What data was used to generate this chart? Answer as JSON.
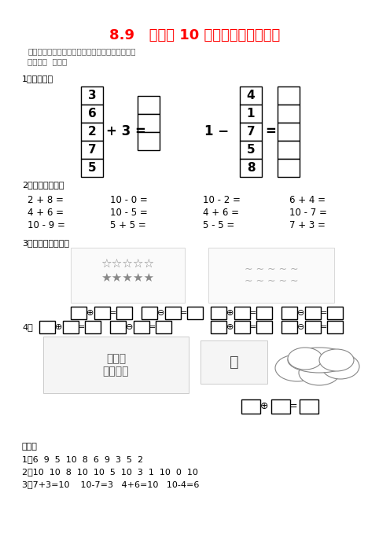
{
  "title": "8.9   得数是 10 的加法和相应的减法",
  "title_color": "#FF0000",
  "subtitle1": "路漫漫其修远兮，吾将上下而求索。屈原《离骚》",
  "subtitle2": "江南学校  李友峰",
  "section1": "1、填一填。",
  "section2": "2、看谁算得快。",
  "section3": "3、看图列式计算。",
  "section4_label": "4、",
  "left_nums": [
    "3",
    "6",
    "2",
    "7",
    "5"
  ],
  "right_nums": [
    "4",
    "1",
    "7",
    "5",
    "8"
  ],
  "row1": [
    "2 + 8 =",
    "10 - 0 =",
    "10 - 2 =",
    "6 + 4 ="
  ],
  "row2": [
    "4 + 6 =",
    "10 - 5 =",
    "4 + 6 =",
    "10 - 7 ="
  ],
  "row3": [
    "10 - 9 =",
    "5 + 5 =",
    "5 - 5 =",
    "7 + 3 ="
  ],
  "cloud_text": "又开来了 3 辆。",
  "answer_label": "答案：",
  "answer1": "1、6  9  5  10  8  6  9  3  5  2",
  "answer2": "2、10  10  8  10  10  5  10  3  1  10  0  10",
  "answer3": "3、7+3=10    10-7=3   4+6=10   10-4=6",
  "bg_color": "#FFFFFF",
  "figsize": [
    4.96,
    7.02
  ],
  "dpi": 100
}
